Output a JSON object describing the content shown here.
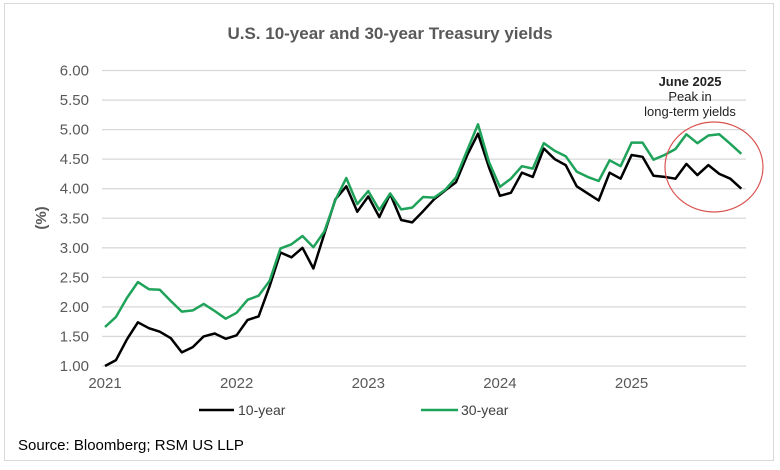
{
  "chart_data": {
    "type": "line",
    "title": "U.S. 10-year and 30-year Treasury yields",
    "xlabel": "",
    "ylabel": "(%)",
    "ylim": [
      1.0,
      6.0
    ],
    "yticks": [
      "1.00",
      "1.50",
      "2.00",
      "2.50",
      "3.00",
      "3.50",
      "4.00",
      "4.50",
      "5.00",
      "5.50",
      "6.00"
    ],
    "xticks": [
      "2021",
      "2022",
      "2023",
      "2024",
      "2025"
    ],
    "x_start": "2021-01",
    "x_frequency": "monthly",
    "grid": true,
    "legend_position": "bottom",
    "series": [
      {
        "name": "10-year",
        "color": "#000000",
        "values": [
          1.0,
          1.1,
          1.45,
          1.74,
          1.64,
          1.58,
          1.47,
          1.23,
          1.32,
          1.5,
          1.55,
          1.46,
          1.52,
          1.78,
          1.84,
          2.35,
          2.92,
          2.84,
          3.0,
          2.65,
          3.24,
          3.82,
          4.04,
          3.61,
          3.87,
          3.52,
          3.91,
          3.47,
          3.43,
          3.62,
          3.82,
          3.97,
          4.11,
          4.56,
          4.93,
          4.36,
          3.88,
          3.93,
          4.27,
          4.2,
          4.68,
          4.5,
          4.4,
          4.04,
          3.92,
          3.8,
          4.27,
          4.17,
          4.57,
          4.54,
          4.22,
          4.2,
          4.17,
          4.42,
          4.23,
          4.4,
          4.25,
          4.17,
          4.0
        ]
      },
      {
        "name": "30-year",
        "color": "#1fa35a",
        "values": [
          1.66,
          1.83,
          2.15,
          2.42,
          2.3,
          2.29,
          2.1,
          1.92,
          1.94,
          2.05,
          1.93,
          1.8,
          1.9,
          2.12,
          2.19,
          2.44,
          2.99,
          3.06,
          3.2,
          3.01,
          3.28,
          3.81,
          4.18,
          3.74,
          3.96,
          3.64,
          3.92,
          3.65,
          3.68,
          3.86,
          3.85,
          3.98,
          4.19,
          4.64,
          5.09,
          4.45,
          4.03,
          4.17,
          4.38,
          4.34,
          4.77,
          4.64,
          4.55,
          4.29,
          4.2,
          4.13,
          4.48,
          4.38,
          4.78,
          4.78,
          4.49,
          4.57,
          4.67,
          4.92,
          4.77,
          4.9,
          4.92,
          4.76,
          4.59
        ]
      }
    ],
    "annotation": {
      "heading": "June  2025",
      "line1": "Peak in",
      "line2": "long-term yields",
      "circle_color": "#d9534f"
    }
  },
  "source": "Source: Bloomberg; RSM US LLP"
}
